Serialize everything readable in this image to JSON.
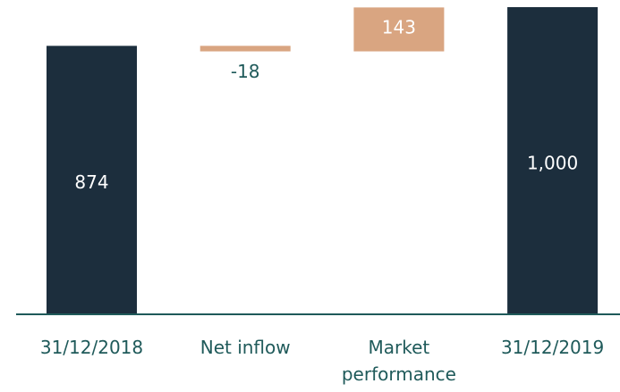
{
  "chart_data": {
    "type": "waterfall",
    "categories": [
      "31/12/2018",
      "Net inflow",
      "Market performance",
      "31/12/2019"
    ],
    "values": [
      874,
      -18,
      143,
      1000
    ],
    "value_labels": [
      "874",
      "-18",
      "143",
      "1,000"
    ],
    "is_total": [
      true,
      false,
      false,
      true
    ],
    "colors": [
      "#1c2e3d",
      "#d9a581",
      "#d9a581",
      "#1c2e3d"
    ]
  }
}
